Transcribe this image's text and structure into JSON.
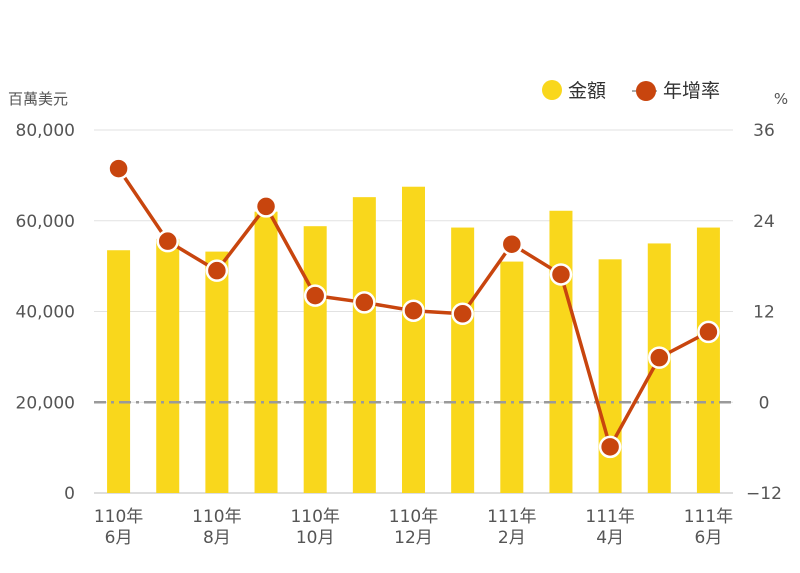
{
  "chart_data": {
    "type": "bar",
    "categories": [
      [
        "110年",
        "6月"
      ],
      [
        "",
        ""
      ],
      [
        "110年",
        "8月"
      ],
      [
        "",
        ""
      ],
      [
        "110年",
        "10月"
      ],
      [
        "",
        ""
      ],
      [
        "110年",
        "12月"
      ],
      [
        "",
        ""
      ],
      [
        "111年",
        "2月"
      ],
      [
        "",
        ""
      ],
      [
        "111年",
        "4月"
      ],
      [
        "",
        ""
      ],
      [
        "111年",
        "6月"
      ]
    ],
    "series": [
      {
        "name": "金額",
        "type": "bar",
        "axis": "left",
        "color": "#F9D71C",
        "values": [
          53500,
          56000,
          53200,
          62000,
          58800,
          65200,
          67500,
          58500,
          51000,
          62200,
          51500,
          55000,
          58500
        ]
      },
      {
        "name": "年增率",
        "type": "line",
        "axis": "right",
        "color": "#C8450E",
        "values": [
          30.9,
          21.3,
          17.4,
          25.9,
          14.1,
          13.2,
          12.1,
          11.7,
          20.9,
          16.9,
          -5.9,
          5.9,
          9.3
        ]
      }
    ],
    "y_left": {
      "label": "百萬美元",
      "ylim": [
        0,
        80000
      ],
      "ticks": [
        "0",
        "20,000",
        "40,000",
        "60,000",
        "80,000"
      ]
    },
    "y_right": {
      "label": "%",
      "ylim": [
        -12,
        36
      ],
      "ticks": [
        "−12",
        "0",
        "12",
        "24",
        "36"
      ]
    },
    "zero_line": true,
    "grid": true,
    "legend": "top-right"
  }
}
